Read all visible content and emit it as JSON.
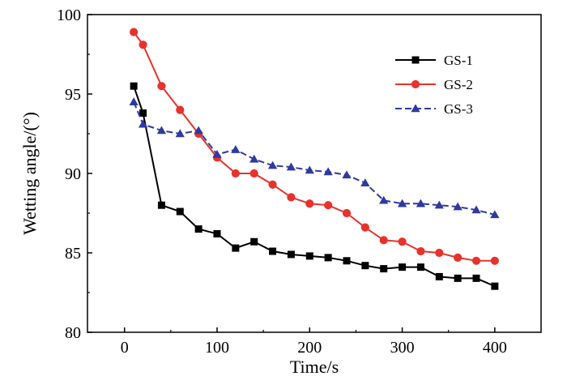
{
  "chart_data": {
    "type": "line",
    "xlabel": "Time/s",
    "ylabel": "Wetting angle/(°)",
    "xlim": [
      -40,
      450
    ],
    "ylim": [
      80,
      100
    ],
    "xticks": [
      0,
      100,
      200,
      300,
      400
    ],
    "yticks": [
      80,
      85,
      90,
      95,
      100
    ],
    "grid": false,
    "legend_position": "top-right",
    "series": [
      {
        "name": "GS-1",
        "color": "#000000",
        "marker": "square",
        "dash": "solid",
        "x": [
          10,
          20,
          40,
          60,
          80,
          100,
          120,
          140,
          160,
          180,
          200,
          220,
          240,
          260,
          280,
          300,
          320,
          340,
          360,
          380,
          400
        ],
        "y": [
          95.5,
          93.8,
          88.0,
          87.6,
          86.5,
          86.2,
          85.3,
          85.7,
          85.1,
          84.9,
          84.8,
          84.7,
          84.5,
          84.2,
          84.0,
          84.1,
          84.1,
          83.5,
          83.4,
          83.4,
          82.9
        ]
      },
      {
        "name": "GS-2",
        "color": "#e8322c",
        "marker": "circle",
        "dash": "solid",
        "x": [
          10,
          20,
          40,
          60,
          80,
          100,
          120,
          140,
          160,
          180,
          200,
          220,
          240,
          260,
          280,
          300,
          320,
          340,
          360,
          380,
          400
        ],
        "y": [
          98.9,
          98.1,
          95.5,
          94.0,
          92.5,
          91.0,
          90.0,
          90.0,
          89.3,
          88.5,
          88.1,
          88.0,
          87.5,
          86.6,
          85.8,
          85.7,
          85.1,
          85.0,
          84.7,
          84.5,
          84.5
        ]
      },
      {
        "name": "GS-3",
        "color": "#2e3a9f",
        "marker": "triangle",
        "dash": "dashed",
        "x": [
          10,
          20,
          40,
          60,
          80,
          100,
          120,
          140,
          160,
          180,
          200,
          220,
          240,
          260,
          280,
          300,
          320,
          340,
          360,
          380,
          400
        ],
        "y": [
          94.5,
          93.1,
          92.7,
          92.5,
          92.7,
          91.2,
          91.5,
          90.9,
          90.5,
          90.4,
          90.2,
          90.1,
          89.9,
          89.4,
          88.3,
          88.1,
          88.1,
          88.0,
          87.9,
          87.7,
          87.4
        ]
      }
    ]
  }
}
